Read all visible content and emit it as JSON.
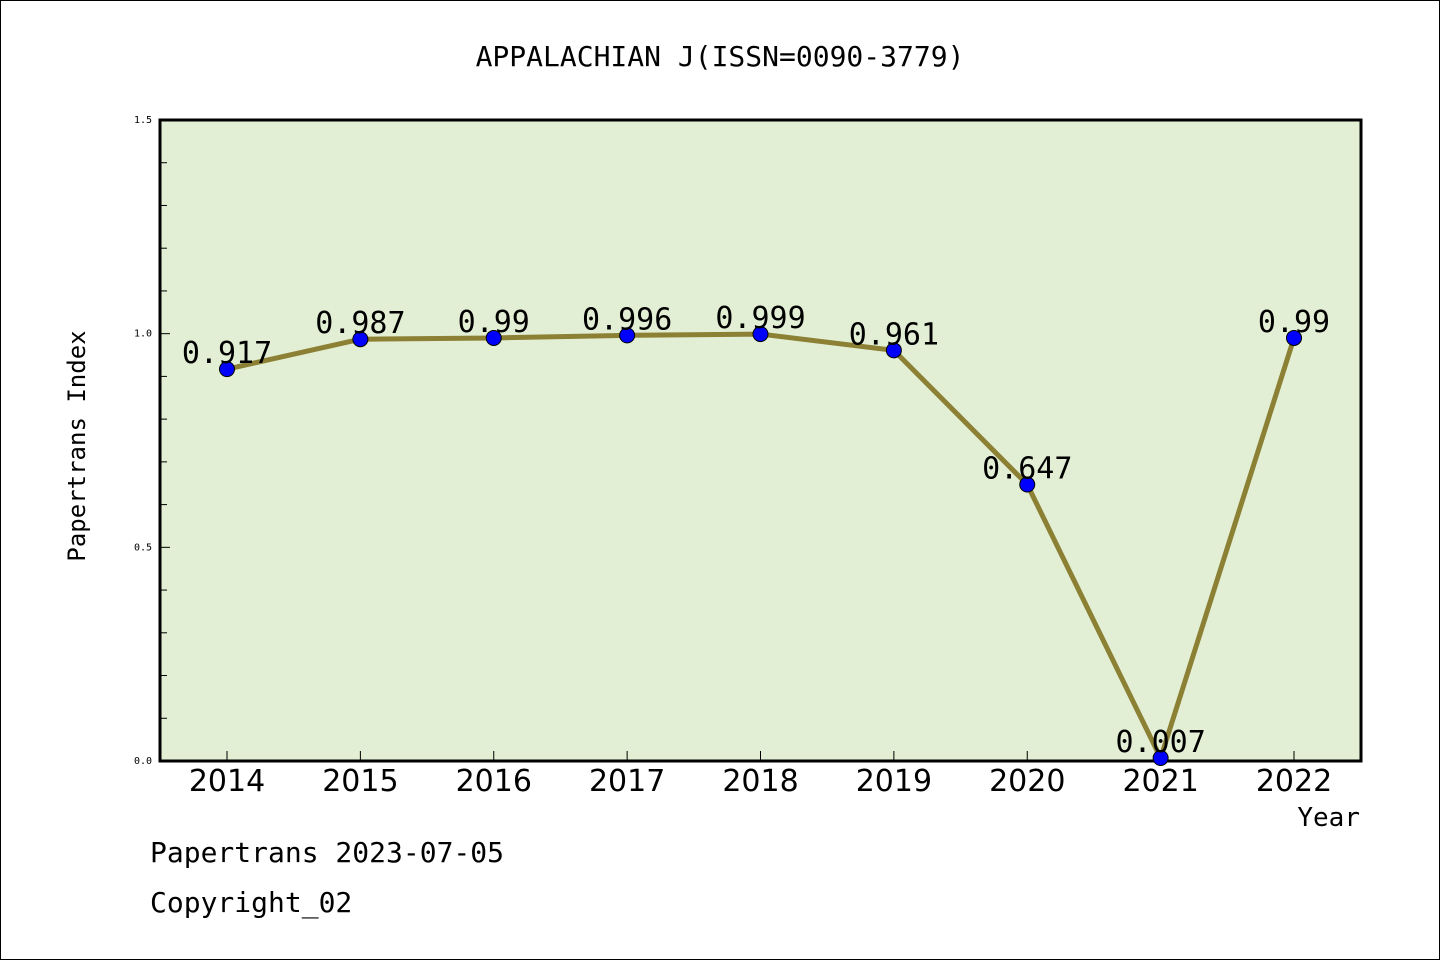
{
  "footer": {
    "line1": "Papertrans 2023-07-05",
    "line2": "Copyright_02"
  },
  "colors": {
    "plot_background": "#e2efd4",
    "line": "#8b8033",
    "marker": "#0000ff"
  },
  "chart_data": {
    "type": "line",
    "title": "APPALACHIAN J(ISSN=0090-3779)",
    "xlabel": "Year",
    "ylabel": "Papertrans Index",
    "categories": [
      "2014",
      "2015",
      "2016",
      "2017",
      "2018",
      "2019",
      "2020",
      "2021",
      "2022"
    ],
    "series": [
      {
        "values": [
          0.917,
          0.987,
          0.99,
          0.996,
          0.999,
          0.961,
          0.647,
          0.007,
          0.99
        ],
        "labels": [
          "0.917",
          "0.987",
          "0.99",
          "0.996",
          "0.999",
          "0.961",
          "0.647",
          "0.007",
          "0.99"
        ]
      }
    ],
    "ylim": [
      0,
      1.5
    ],
    "yticks": [
      "0.0",
      "0.5",
      "1.0",
      "1.5"
    ],
    "grid": false,
    "legend": "none"
  }
}
